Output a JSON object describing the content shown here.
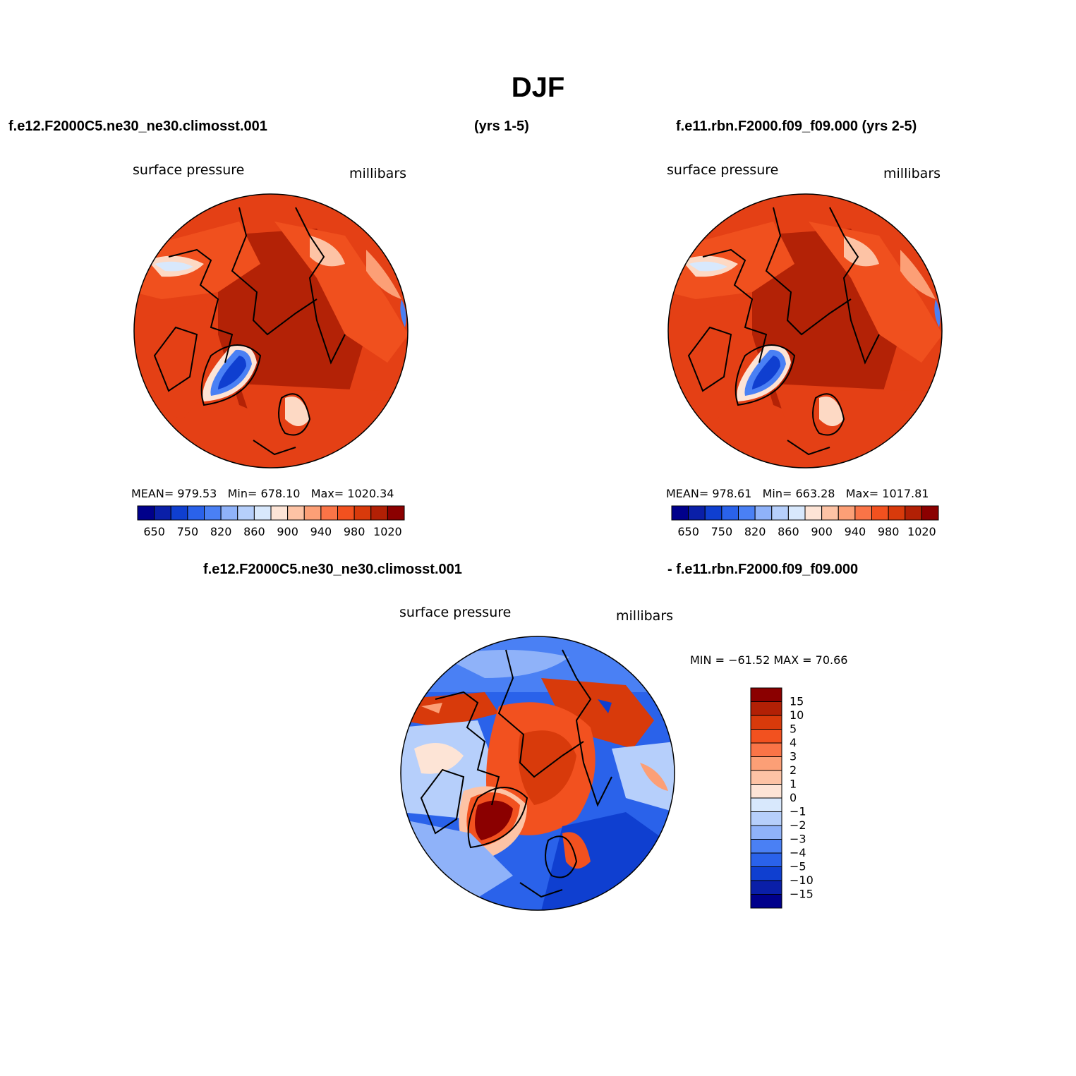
{
  "title": "DJF",
  "panels": {
    "left": {
      "case": "f.e12.F2000C5.ne30_ne30.climosst.001",
      "years": "(yrs 1-5)",
      "variable": "surface pressure",
      "units": "millibars",
      "mean_label": "MEAN=",
      "mean": "979.53",
      "min_label": "Min=",
      "min": "678.10",
      "max_label": "Max=",
      "max": "1020.34"
    },
    "right": {
      "case_years": "f.e11.rbn.F2000.f09_f09.000 (yrs 2-5)",
      "variable": "surface pressure",
      "units": "millibars",
      "mean_label": "MEAN=",
      "mean": "978.61",
      "min_label": "Min=",
      "min": "663.28",
      "max_label": "Max=",
      "max": "1017.81"
    },
    "diff": {
      "case_a": "f.e12.F2000C5.ne30_ne30.climosst.001",
      "case_b": "- f.e11.rbn.F2000.f09_f09.000",
      "variable": "surface pressure",
      "units": "millibars",
      "minmax_text": "MIN = −61.52 MAX =  70.66"
    }
  },
  "colorbar_abs": {
    "colors": [
      "#00008b",
      "#0a1fa8",
      "#0f3fd0",
      "#2a62ea",
      "#4a80f4",
      "#8fb2f9",
      "#b6cffb",
      "#d8e8fc",
      "#fde4d6",
      "#fdc3a5",
      "#fc9f76",
      "#fa7447",
      "#f2511f",
      "#d83a0b",
      "#b22005",
      "#8b0000"
    ],
    "labels": [
      "650",
      "750",
      "820",
      "860",
      "900",
      "940",
      "980",
      "1020"
    ]
  },
  "colorbar_diff": {
    "colors": [
      "#8b0000",
      "#b22005",
      "#d83a0b",
      "#f2511f",
      "#fa7447",
      "#fc9f76",
      "#fdc3a5",
      "#fde4d6",
      "#d8e8fc",
      "#b6cffb",
      "#8fb2f9",
      "#4a80f4",
      "#2a62ea",
      "#0f3fd0",
      "#0a1fa8",
      "#00008b"
    ],
    "labels": [
      "15",
      "10",
      "5",
      "4",
      "3",
      "2",
      "1",
      "0",
      "−1",
      "−2",
      "−3",
      "−4",
      "−5",
      "−10",
      "−15"
    ]
  }
}
